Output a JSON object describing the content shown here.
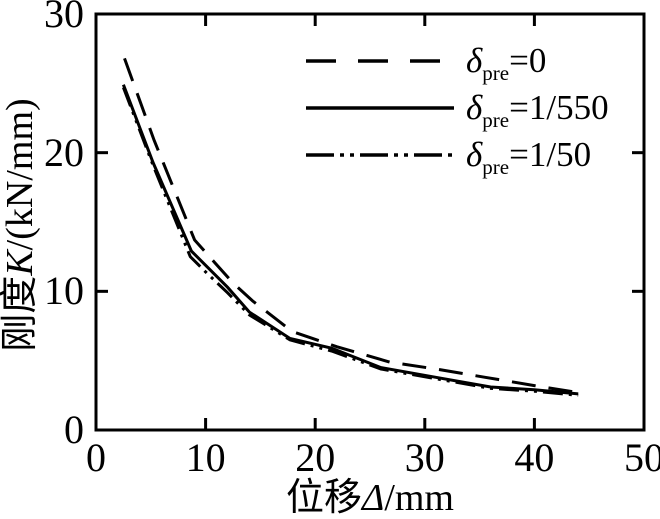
{
  "figure": {
    "background": "#ffffff",
    "ink": "#000000"
  },
  "chart_data": {
    "type": "line",
    "title": "",
    "xlabel": {
      "prefix": "位移",
      "symbol": "Δ",
      "suffix": "/mm"
    },
    "ylabel": {
      "prefix": "刚度",
      "symbol": "K",
      "suffix": "/(kN/mm)"
    },
    "xlim": [
      0,
      50
    ],
    "ylim": [
      0,
      30
    ],
    "x_ticks": [
      0,
      10,
      20,
      30,
      40,
      50
    ],
    "y_ticks": [
      0,
      10,
      20,
      30
    ],
    "grid": false,
    "legend_position": "top-right-inside",
    "series": [
      {
        "name": "delta_pre = 0",
        "legend": {
          "symbol": "δ",
          "subscript": "pre",
          "value": "=0"
        },
        "line_style": "dashed",
        "dash": "24 13",
        "legend_dash": "30 22",
        "color": "#000000",
        "x": [
          2.6,
          5.3,
          9.0,
          10.8,
          12.5,
          14.3,
          17.9,
          22.0,
          26.8,
          31.0,
          35.5,
          40.0,
          44.0
        ],
        "y": [
          26.8,
          20.9,
          13.7,
          12.1,
          10.6,
          9.3,
          7.1,
          6.0,
          4.9,
          4.4,
          3.8,
          3.2,
          2.7
        ]
      },
      {
        "name": "delta_pre = 1/550",
        "legend": {
          "symbol": "δ",
          "subscript": "pre",
          "value": "=1/550"
        },
        "line_style": "solid",
        "dash": "",
        "legend_dash": "",
        "color": "#000000",
        "x": [
          2.5,
          5.2,
          8.7,
          12.0,
          14.0,
          17.7,
          21.5,
          26.0,
          31.0,
          36.0,
          40.0,
          44.0
        ],
        "y": [
          24.9,
          19.3,
          12.9,
          10.3,
          8.5,
          6.6,
          5.9,
          4.5,
          3.8,
          3.1,
          2.9,
          2.6
        ]
      },
      {
        "name": "delta_pre = 1/50",
        "legend": {
          "symbol": "δ",
          "subscript": "pre",
          "value": "=1/50"
        },
        "line_style": "dash-dot-dot",
        "dash": "20 6 3 6 3 6",
        "legend_dash": "28 6 4 6 4 6",
        "color": "#000000",
        "x": [
          2.5,
          5.2,
          8.6,
          10.0,
          12.0,
          14.0,
          17.7,
          21.5,
          26.0,
          31.0,
          36.0,
          40.0,
          44.0
        ],
        "y": [
          24.7,
          19.1,
          12.5,
          11.4,
          9.9,
          8.3,
          6.5,
          5.7,
          4.4,
          3.7,
          3.0,
          2.8,
          2.5
        ]
      }
    ]
  }
}
